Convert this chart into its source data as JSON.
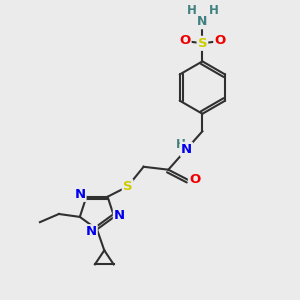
{
  "bg_color": "#ebebeb",
  "atom_colors": {
    "C": "#303030",
    "N": "#0000ee",
    "O": "#ee0000",
    "S": "#cccc00",
    "H": "#408080"
  },
  "bond_color": "#303030",
  "fig_size": [
    3.0,
    3.0
  ],
  "dpi": 100,
  "xlim": [
    0,
    10
  ],
  "ylim": [
    0,
    10
  ]
}
